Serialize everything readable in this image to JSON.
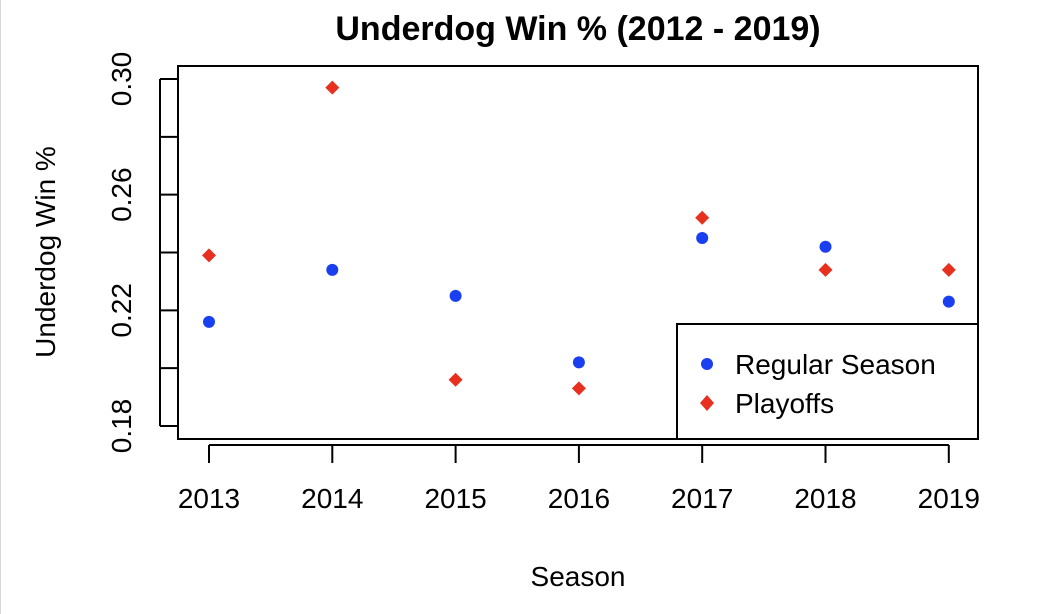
{
  "chart_data": {
    "type": "scatter",
    "title": "Underdog Win % (2012 - 2019)",
    "xlabel": "Season",
    "ylabel": "Underdog Win %",
    "categories": [
      "2013",
      "2014",
      "2015",
      "2016",
      "2017",
      "2018",
      "2019"
    ],
    "ylim": [
      0.18,
      0.3
    ],
    "y_ticks": [
      "0.18",
      "0.22",
      "0.26",
      "0.30"
    ],
    "grid": false,
    "legend_position": "bottom-right",
    "series": [
      {
        "name": "Regular Season",
        "marker": "circle",
        "color": "#1a3ff0",
        "values": [
          0.216,
          0.234,
          0.225,
          0.202,
          0.245,
          0.242,
          0.223
        ]
      },
      {
        "name": "Playoffs",
        "marker": "diamond",
        "color": "#e8301e",
        "values": [
          0.239,
          0.297,
          0.196,
          0.193,
          0.252,
          0.234,
          0.234
        ]
      }
    ]
  }
}
